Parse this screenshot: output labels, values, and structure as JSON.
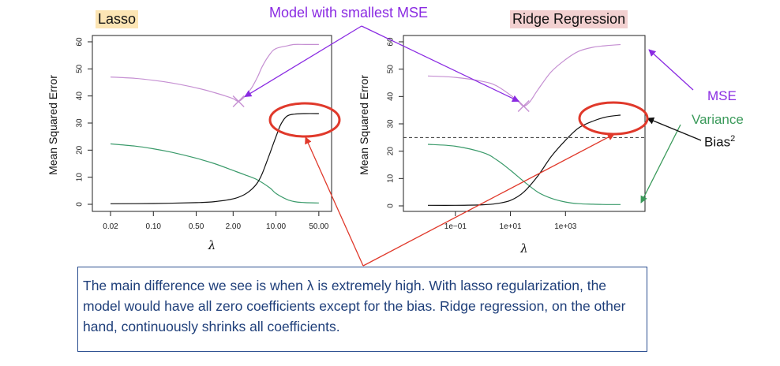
{
  "titles": {
    "lasso": "Lasso",
    "ridge": "Ridge Regression",
    "callout": "Model with smallest MSE"
  },
  "legend": {
    "mse": "MSE",
    "variance": "Variance",
    "bias": "Bias",
    "bias_sup": "2"
  },
  "note": "The main difference we see is when λ is extremely high. With lasso regularization, the model would have all zero coefficients except for the bias. Ridge regression, on the other hand, continuously shrinks all coefficients.",
  "colors": {
    "mse": "#c58fd2",
    "variance": "#3a9a6a",
    "bias": "#111111",
    "callout_arrow": "#8a2be2",
    "legend_arrow_mse": "#8a2be2",
    "legend_arrow_variance": "#3a9a5a",
    "red_highlight": "#e0392b",
    "lasso_title_bg": "#fce5b4",
    "ridge_title_bg": "#f2d0d0",
    "note_border": "#2a4d8f"
  },
  "chart_data": [
    {
      "type": "line",
      "title": "Lasso",
      "xlabel": "λ",
      "ylabel": "Mean Squared Error",
      "x_scale": "log",
      "xlim": [
        0.0136,
        60
      ],
      "ylim": [
        0,
        60
      ],
      "x_ticks": [
        0.02,
        0.1,
        0.5,
        2,
        10,
        50
      ],
      "x_tick_labels": [
        "0.02",
        "0.10",
        "0.50",
        "2.00",
        "10.00",
        "50.00"
      ],
      "y_ticks": [
        0,
        10,
        20,
        30,
        40,
        50,
        60
      ],
      "y_tick_labels": [
        "0",
        "10",
        "20",
        "30",
        "40",
        "50",
        "60"
      ],
      "min_mse_point": {
        "x": 2.45,
        "y": 38
      },
      "series": [
        {
          "key": "mse",
          "x": [
            0.02,
            0.05,
            0.1,
            0.2,
            0.5,
            1,
            1.5,
            2,
            2.45,
            3,
            4,
            5,
            6,
            8,
            10,
            15,
            20,
            30,
            50
          ],
          "y": [
            47,
            46.5,
            45.8,
            44.8,
            43,
            41.2,
            40,
            39,
            38,
            39.5,
            43,
            47,
            51,
            55.5,
            57.5,
            58.5,
            59,
            59,
            59
          ]
        },
        {
          "key": "variance",
          "x": [
            0.02,
            0.05,
            0.1,
            0.2,
            0.5,
            1,
            2,
            3,
            5,
            8,
            10,
            15,
            20,
            30,
            50
          ],
          "y": [
            22.3,
            21.5,
            20.5,
            19.2,
            17,
            15,
            12.5,
            11,
            9,
            6,
            4,
            1.8,
            1,
            0.6,
            0.5
          ]
        },
        {
          "key": "bias",
          "x": [
            0.02,
            0.1,
            0.5,
            1,
            2,
            3,
            4,
            5,
            6,
            8,
            10,
            12,
            15,
            20,
            30,
            50
          ],
          "y": [
            0.2,
            0.3,
            0.6,
            1,
            2,
            3.5,
            5.5,
            8,
            11.5,
            19,
            25,
            29.5,
            32.5,
            33.3,
            33.5,
            33.5
          ]
        }
      ]
    },
    {
      "type": "line",
      "title": "Ridge Regression",
      "xlabel": "λ",
      "ylabel": "Mean Squared Error",
      "x_scale": "log",
      "xlim": [
        0.0025,
        400000
      ],
      "ylim": [
        0,
        60
      ],
      "x_ticks": [
        0.1,
        10,
        1000
      ],
      "x_tick_labels": [
        "1e−01",
        "1e+01",
        "1e+03"
      ],
      "y_ticks": [
        0,
        10,
        20,
        30,
        40,
        50,
        60
      ],
      "y_tick_labels": [
        "0",
        "10",
        "20",
        "30",
        "40",
        "50",
        "60"
      ],
      "reference_line_y": 25,
      "min_mse_point": {
        "x": 30,
        "y": 36.5
      },
      "series": [
        {
          "key": "mse",
          "x": [
            0.01,
            0.1,
            1,
            3,
            10,
            20,
            30,
            50,
            100,
            300,
            1000,
            3000,
            10000,
            30000,
            100000
          ],
          "y": [
            47.5,
            47,
            45.5,
            44,
            40.5,
            38,
            36.5,
            38,
            42.5,
            49,
            53.5,
            56.5,
            58,
            58.6,
            59
          ]
        },
        {
          "key": "variance",
          "x": [
            0.01,
            0.1,
            1,
            3,
            10,
            30,
            100,
            300,
            1000,
            3000,
            10000,
            30000,
            100000
          ],
          "y": [
            22.5,
            21.8,
            19.5,
            17,
            13,
            9,
            5,
            2.8,
            1.4,
            0.8,
            0.6,
            0.5,
            0.5
          ]
        },
        {
          "key": "bias",
          "x": [
            0.01,
            0.1,
            1,
            3,
            10,
            30,
            100,
            300,
            1000,
            3000,
            10000,
            30000,
            100000
          ],
          "y": [
            0.2,
            0.2,
            0.4,
            0.8,
            2,
            5,
            11,
            18,
            24,
            28.5,
            31,
            32.5,
            33.2
          ]
        }
      ]
    }
  ]
}
